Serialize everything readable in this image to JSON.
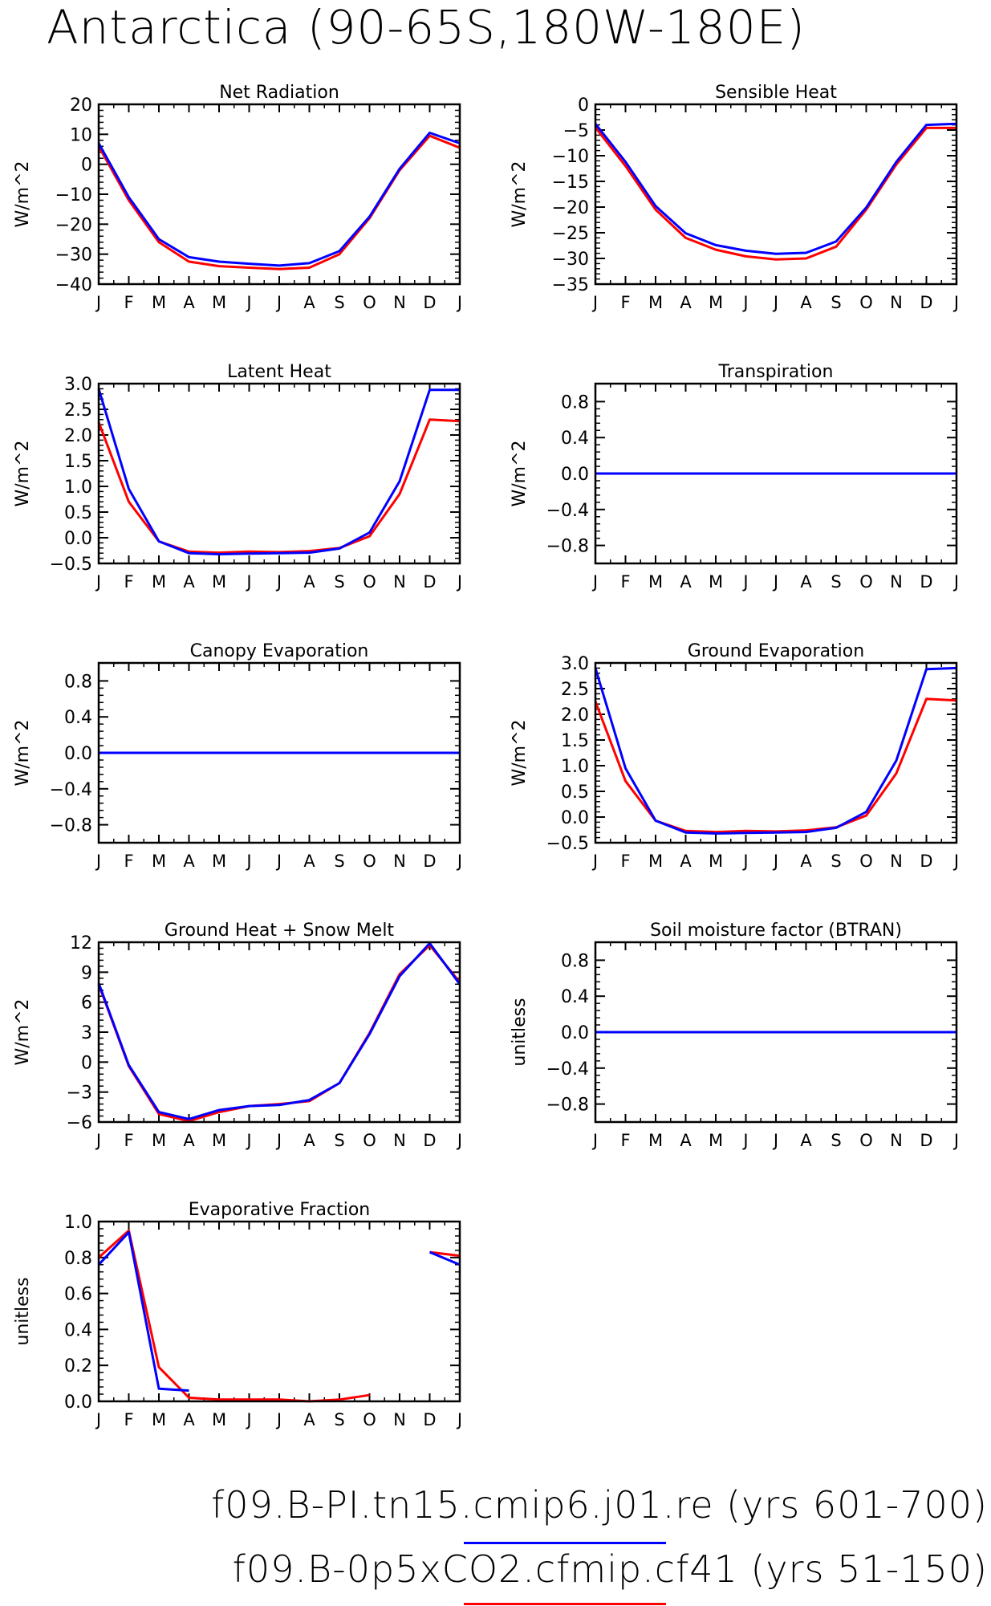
{
  "title": "Antarctica (90-65S,180W-180E)",
  "months": [
    "J",
    "F",
    "M",
    "A",
    "M",
    "J",
    "J",
    "A",
    "S",
    "O",
    "N",
    "D",
    "J"
  ],
  "series_colors": {
    "a": "#0000ff",
    "b": "#ff0000"
  },
  "legend": [
    {
      "label": "f09.B-PI.tn15.cmip6.j01.re (yrs 601-700)",
      "color": "#0000ff"
    },
    {
      "label": "f09.B-0p5xCO2.cfmip.cf41 (yrs 51-150)",
      "color": "#ff0000"
    }
  ],
  "chart_data": [
    {
      "type": "line",
      "title": "Net Radiation",
      "ylabel": "W/m^2",
      "ylim": [
        -40,
        20
      ],
      "yticks": [
        -40,
        -30,
        -20,
        -10,
        0,
        10,
        20
      ],
      "series": [
        {
          "color": "#ff0000",
          "values": [
            6,
            -12,
            -26,
            -32.5,
            -34,
            -34.5,
            -35,
            -34.5,
            -30,
            -18,
            -2,
            9.5,
            5.5
          ]
        },
        {
          "color": "#0000ff",
          "values": [
            7,
            -11,
            -25,
            -31,
            -32.5,
            -33.2,
            -33.8,
            -33,
            -29,
            -17.5,
            -1.5,
            10.5,
            7
          ]
        }
      ]
    },
    {
      "type": "line",
      "title": "Sensible Heat",
      "ylabel": "W/m^2",
      "ylim": [
        -35,
        0
      ],
      "yticks": [
        -35,
        -30,
        -25,
        -20,
        -15,
        -10,
        -5,
        0
      ],
      "series": [
        {
          "color": "#ff0000",
          "values": [
            -4.5,
            -12,
            -20.5,
            -26,
            -28.3,
            -29.6,
            -30.2,
            -30,
            -27.7,
            -20.5,
            -11.7,
            -4.6,
            -4.6
          ]
        },
        {
          "color": "#0000ff",
          "values": [
            -3.8,
            -11.2,
            -19.8,
            -25.1,
            -27.4,
            -28.5,
            -29.1,
            -28.9,
            -26.7,
            -20.1,
            -11.2,
            -4,
            -3.8
          ]
        }
      ]
    },
    {
      "type": "line",
      "title": "Latent Heat",
      "ylabel": "W/m^2",
      "ylim": [
        -0.5,
        3.0
      ],
      "yticks": [
        -0.5,
        0.0,
        0.5,
        1.0,
        1.5,
        2.0,
        2.5,
        3.0
      ],
      "series": [
        {
          "color": "#ff0000",
          "values": [
            2.25,
            0.7,
            -0.07,
            -0.27,
            -0.29,
            -0.27,
            -0.28,
            -0.26,
            -0.2,
            0.03,
            0.85,
            2.3,
            2.27
          ]
        },
        {
          "color": "#0000ff",
          "values": [
            2.9,
            0.95,
            -0.07,
            -0.3,
            -0.32,
            -0.31,
            -0.3,
            -0.29,
            -0.21,
            0.1,
            1.1,
            2.88,
            2.88
          ]
        }
      ]
    },
    {
      "type": "line",
      "title": "Transpiration",
      "ylabel": "W/m^2",
      "ylim": [
        -1.0,
        1.0
      ],
      "yticks": [
        -0.8,
        -0.4,
        0.0,
        0.4,
        0.8
      ],
      "series": [
        {
          "color": "#ff0000",
          "values": [
            0,
            0,
            0,
            0,
            0,
            0,
            0,
            0,
            0,
            0,
            0,
            0,
            0
          ]
        },
        {
          "color": "#0000ff",
          "values": [
            0,
            0,
            0,
            0,
            0,
            0,
            0,
            0,
            0,
            0,
            0,
            0,
            0
          ]
        }
      ]
    },
    {
      "type": "line",
      "title": "Canopy Evaporation",
      "ylabel": "W/m^2",
      "ylim": [
        -1.0,
        1.0
      ],
      "yticks": [
        -0.8,
        -0.4,
        0.0,
        0.4,
        0.8
      ],
      "series": [
        {
          "color": "#ff0000",
          "values": [
            0,
            0,
            0,
            0,
            0,
            0,
            0,
            0,
            0,
            0,
            0,
            0,
            0
          ]
        },
        {
          "color": "#0000ff",
          "values": [
            0,
            0,
            0,
            0,
            0,
            0,
            0,
            0,
            0,
            0,
            0,
            0,
            0
          ]
        }
      ]
    },
    {
      "type": "line",
      "title": "Ground Evaporation",
      "ylabel": "W/m^2",
      "ylim": [
        -0.5,
        3.0
      ],
      "yticks": [
        -0.5,
        0.0,
        0.5,
        1.0,
        1.5,
        2.0,
        2.5,
        3.0
      ],
      "series": [
        {
          "color": "#ff0000",
          "values": [
            2.25,
            0.7,
            -0.07,
            -0.27,
            -0.29,
            -0.27,
            -0.28,
            -0.26,
            -0.2,
            0.03,
            0.85,
            2.3,
            2.27
          ]
        },
        {
          "color": "#0000ff",
          "values": [
            2.9,
            0.95,
            -0.07,
            -0.3,
            -0.32,
            -0.31,
            -0.3,
            -0.29,
            -0.21,
            0.1,
            1.1,
            2.88,
            2.9
          ]
        }
      ]
    },
    {
      "type": "line",
      "title": "Ground Heat + Snow Melt",
      "ylabel": "W/m^2",
      "ylim": [
        -6,
        12
      ],
      "yticks": [
        -6,
        -3,
        0,
        3,
        6,
        9,
        12
      ],
      "series": [
        {
          "color": "#ff0000",
          "values": [
            7.8,
            -0.4,
            -5.2,
            -5.9,
            -5,
            -4.4,
            -4.2,
            -3.9,
            -2.1,
            2.9,
            8.8,
            11.7,
            8
          ]
        },
        {
          "color": "#0000ff",
          "values": [
            7.9,
            -0.3,
            -5,
            -5.7,
            -4.8,
            -4.4,
            -4.3,
            -3.8,
            -2.1,
            2.8,
            8.6,
            11.9,
            7.8
          ]
        }
      ]
    },
    {
      "type": "line",
      "title": "Soil moisture factor (BTRAN)",
      "ylabel": "unitless",
      "ylim": [
        -1.0,
        1.0
      ],
      "yticks": [
        -0.8,
        -0.4,
        0.0,
        0.4,
        0.8
      ],
      "series": [
        {
          "color": "#ff0000",
          "values": [
            0,
            0,
            0,
            0,
            0,
            0,
            0,
            0,
            0,
            0,
            0,
            0,
            0
          ]
        },
        {
          "color": "#0000ff",
          "values": [
            0,
            0,
            0,
            0,
            0,
            0,
            0,
            0,
            0,
            0,
            0,
            0,
            0
          ]
        }
      ]
    },
    {
      "type": "line",
      "title": "Evaporative Fraction",
      "ylabel": "unitless",
      "ylim": [
        0.0,
        1.0
      ],
      "yticks": [
        0.0,
        0.2,
        0.4,
        0.6,
        0.8,
        1.0
      ],
      "series": [
        {
          "color": "#ff0000",
          "values": [
            0.8,
            0.95,
            0.19,
            0.02,
            0.01,
            0.01,
            0.01,
            0.0,
            0.01,
            0.035,
            null,
            0.83,
            0.81
          ]
        },
        {
          "color": "#0000ff",
          "values": [
            0.76,
            0.94,
            0.07,
            0.06,
            null,
            null,
            null,
            null,
            null,
            null,
            null,
            0.83,
            0.76
          ]
        }
      ]
    }
  ]
}
